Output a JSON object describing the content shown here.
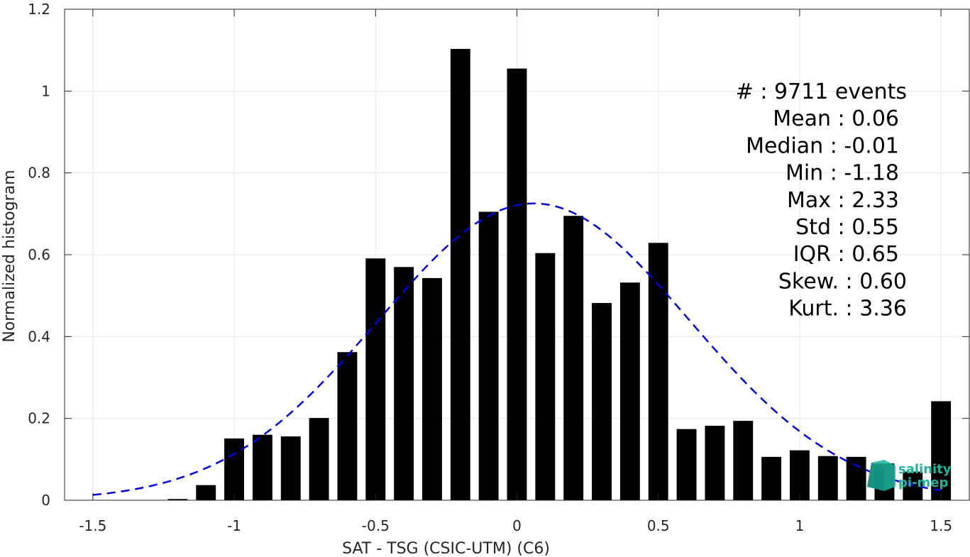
{
  "chart_data": {
    "type": "bar",
    "xlabel": "SAT - TSG (CSIC-UTM) (C6)",
    "ylabel": "Normalized histogram",
    "xlim": [
      -1.6,
      1.6
    ],
    "ylim": [
      0,
      1.2
    ],
    "xticks": [
      -1.5,
      -1,
      -0.5,
      0,
      0.5,
      1,
      1.5
    ],
    "xtick_labels": [
      "-1.5",
      "-1",
      "-0.5",
      "0",
      "0.5",
      "1",
      "1.5"
    ],
    "yticks": [
      0,
      0.2,
      0.4,
      0.6,
      0.8,
      1,
      1.2
    ],
    "ytick_labels": [
      "0",
      "0.2",
      "0.4",
      "0.6",
      "0.8",
      "1",
      "1.2"
    ],
    "grid": true,
    "bar_color": "#000000",
    "bar_width": 0.07,
    "bins": [
      {
        "x": -1.3,
        "y": 0
      },
      {
        "x": -1.2,
        "y": 0.003
      },
      {
        "x": -1.1,
        "y": 0.037
      },
      {
        "x": -1.0,
        "y": 0.151
      },
      {
        "x": -0.9,
        "y": 0.16
      },
      {
        "x": -0.8,
        "y": 0.156
      },
      {
        "x": -0.7,
        "y": 0.201
      },
      {
        "x": -0.6,
        "y": 0.362
      },
      {
        "x": -0.5,
        "y": 0.591
      },
      {
        "x": -0.4,
        "y": 0.57
      },
      {
        "x": -0.3,
        "y": 0.543
      },
      {
        "x": -0.2,
        "y": 1.103
      },
      {
        "x": -0.1,
        "y": 0.705
      },
      {
        "x": 0.0,
        "y": 1.055
      },
      {
        "x": 0.1,
        "y": 0.604
      },
      {
        "x": 0.2,
        "y": 0.695
      },
      {
        "x": 0.3,
        "y": 0.482
      },
      {
        "x": 0.4,
        "y": 0.532
      },
      {
        "x": 0.5,
        "y": 0.629
      },
      {
        "x": 0.6,
        "y": 0.174
      },
      {
        "x": 0.7,
        "y": 0.182
      },
      {
        "x": 0.8,
        "y": 0.194
      },
      {
        "x": 0.9,
        "y": 0.106
      },
      {
        "x": 1.0,
        "y": 0.122
      },
      {
        "x": 1.1,
        "y": 0.108
      },
      {
        "x": 1.2,
        "y": 0.106
      },
      {
        "x": 1.3,
        "y": 0.09
      },
      {
        "x": 1.4,
        "y": 0.07
      },
      {
        "x": 1.5,
        "y": 0.242
      }
    ],
    "fit": {
      "type": "normal",
      "mean": 0.06,
      "std": 0.55,
      "x_range": [
        -1.5,
        1.5
      ],
      "color": "#0000e6",
      "style": "dashed"
    },
    "stats_lines": [
      "#  : 9711 events",
      "Mean : 0.06",
      "Median : -0.01",
      "Min : -1.18",
      "Max : 2.33",
      "Std : 0.55",
      "IQR : 0.65",
      "Skew. : 0.60",
      "Kurt. : 3.36"
    ],
    "stats_position": "top-right"
  },
  "logo": {
    "line1": "salinity",
    "line2": "pi-mep",
    "color": "#1fb3a0"
  }
}
